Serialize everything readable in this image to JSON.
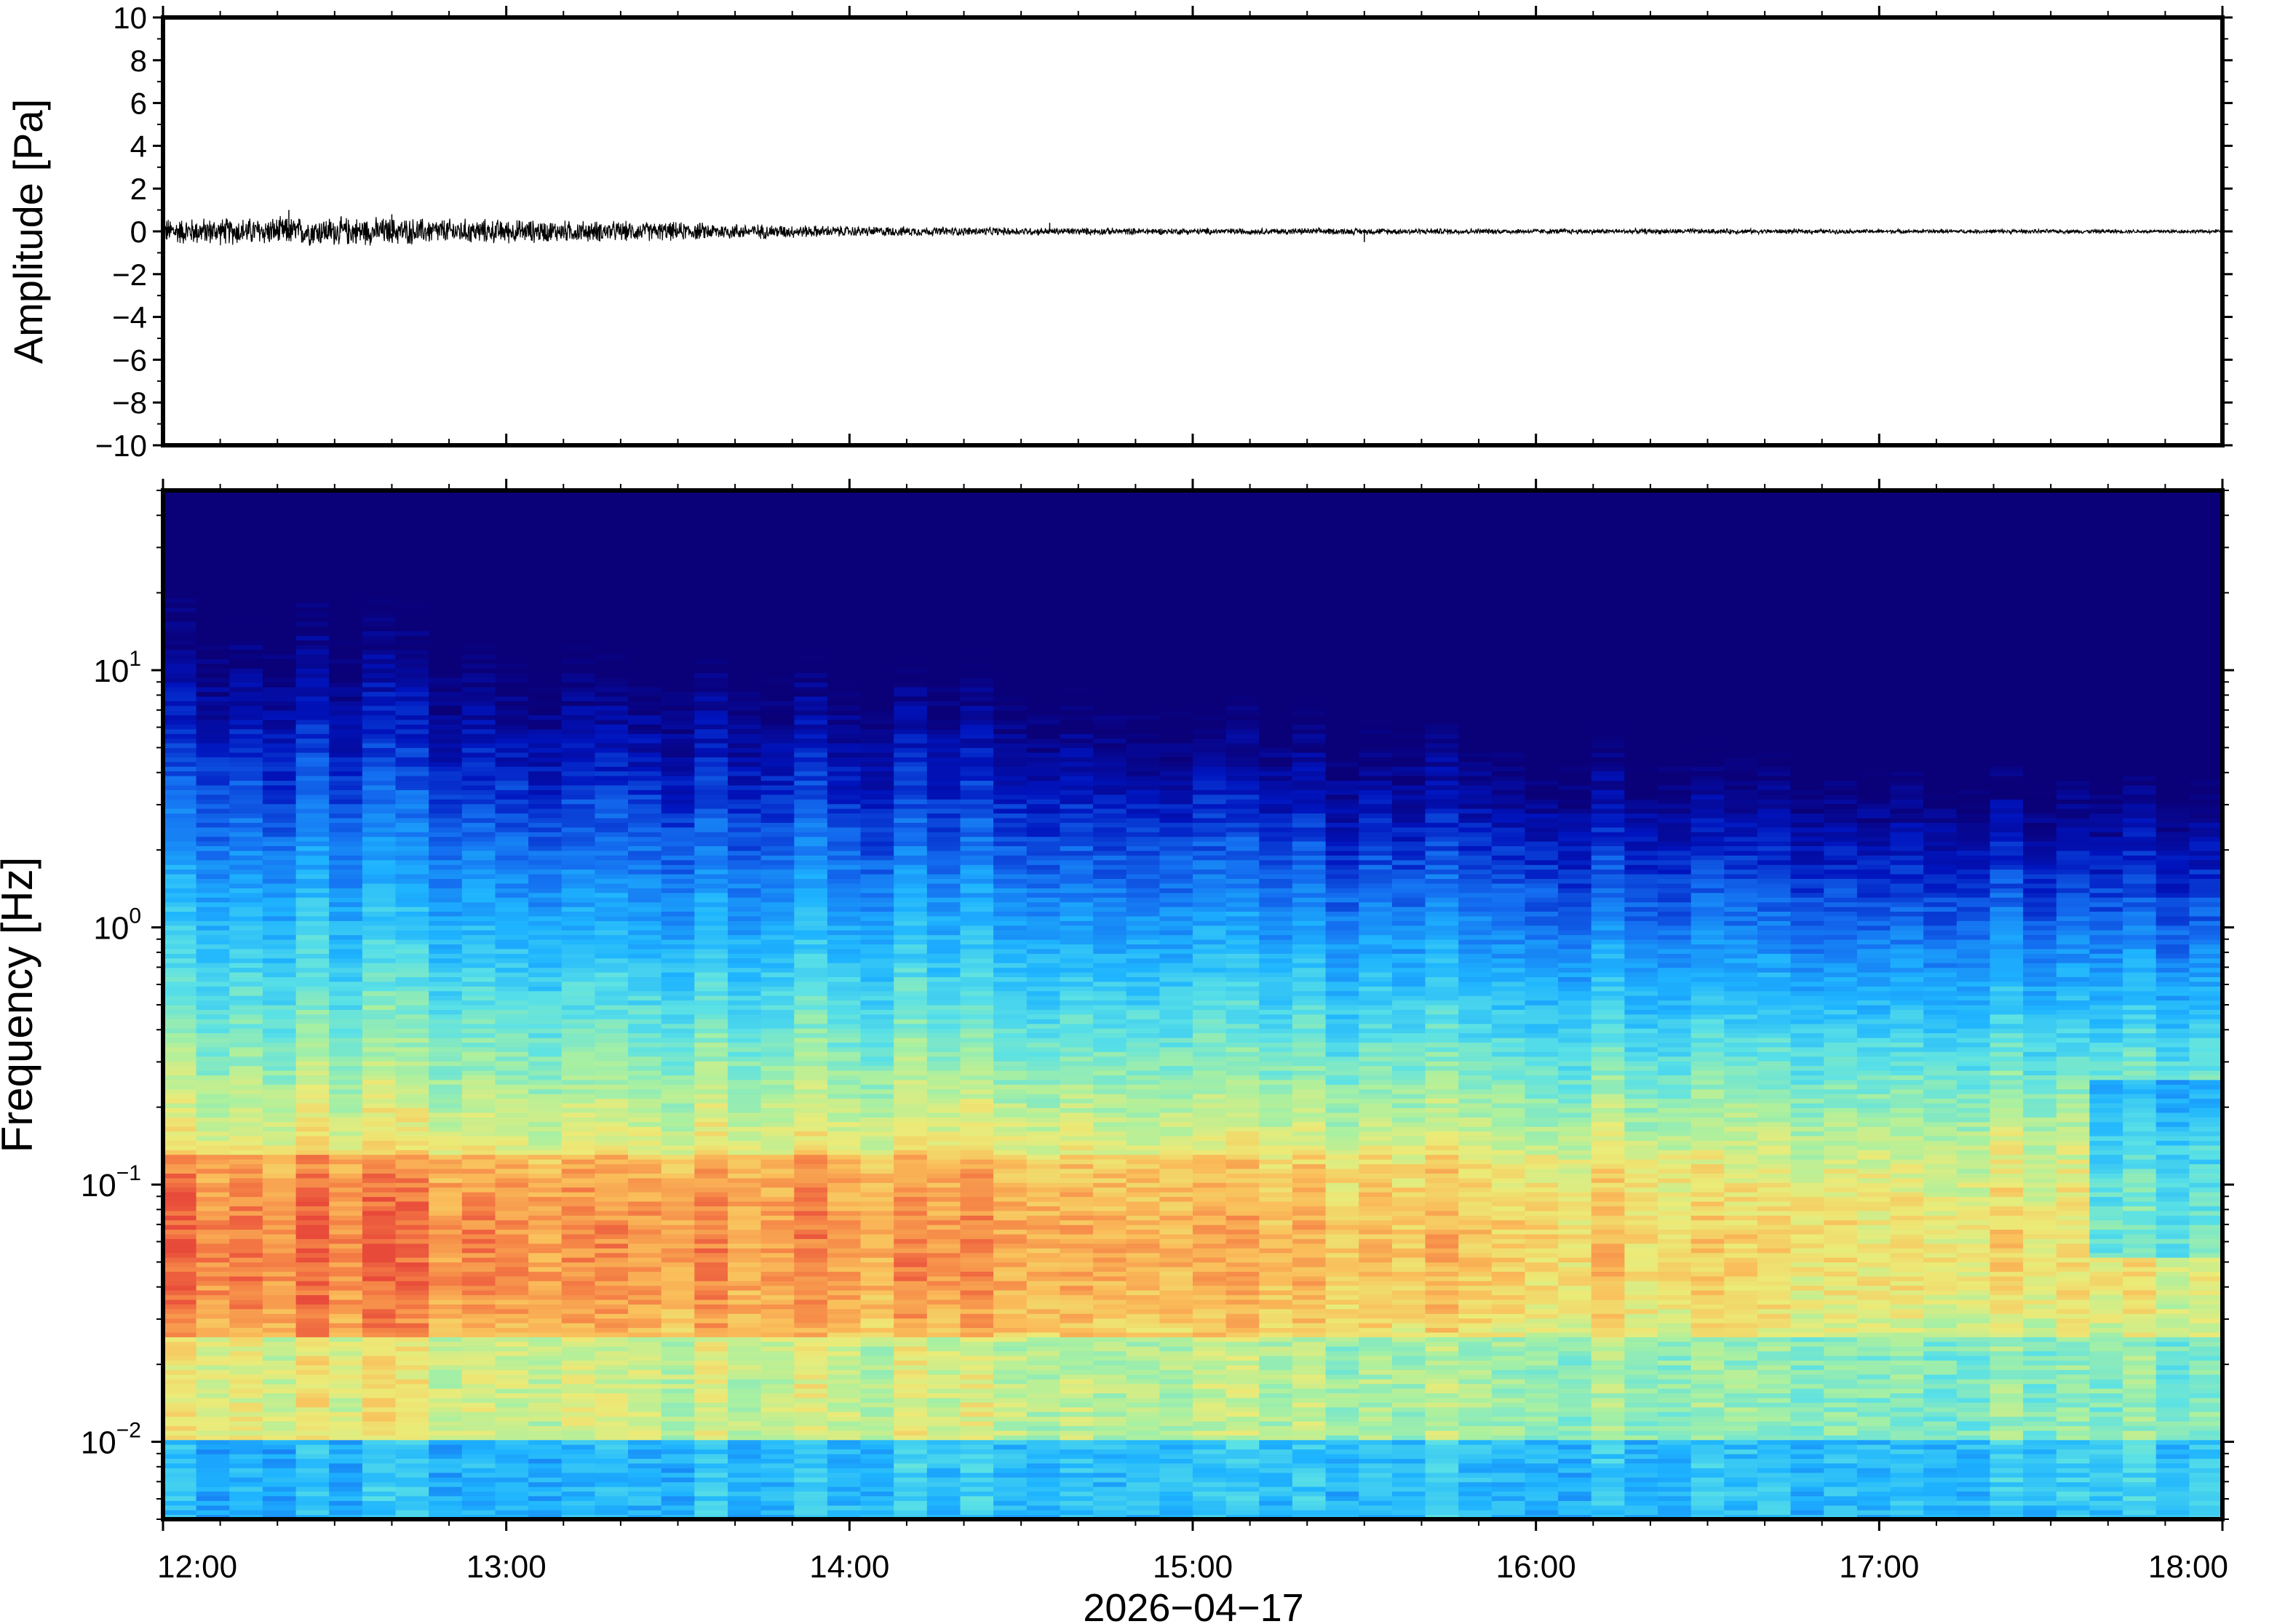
{
  "chart_data": [
    {
      "type": "line",
      "panel": "waveform",
      "ylabel": "Amplitude [Pa]",
      "ylim": [
        -10,
        10
      ],
      "yticks": [
        "10",
        "8",
        "6",
        "4",
        "2",
        "0",
        "−2",
        "−4",
        "−6",
        "−8",
        "−10"
      ],
      "ytick_values": [
        10,
        8,
        6,
        4,
        2,
        0,
        -2,
        -4,
        -6,
        -8,
        -10
      ],
      "xlim": [
        "12:00",
        "18:00"
      ],
      "line_color": "#000000",
      "envelope": {
        "x": [
          "12:00",
          "12:30",
          "13:00",
          "13:30",
          "14:00",
          "14:30",
          "15:00",
          "15:30",
          "16:00",
          "16:30",
          "17:00",
          "17:30",
          "18:00"
        ],
        "amplitude": [
          0.5,
          0.55,
          0.45,
          0.35,
          0.2,
          0.15,
          0.12,
          0.12,
          0.1,
          0.1,
          0.08,
          0.08,
          0.07
        ]
      },
      "spikes": [
        {
          "x": "12:22",
          "y": 1.0
        },
        {
          "x": "12:40",
          "y": 0.8
        },
        {
          "x": "14:35",
          "y": 0.4
        },
        {
          "x": "15:30",
          "y": -0.5
        }
      ]
    },
    {
      "type": "heatmap",
      "panel": "spectrogram",
      "ylabel": "Frequency [Hz]",
      "xlabel": "2026−04−17",
      "yscale": "log",
      "ylim": [
        0.005,
        50
      ],
      "yticks": [
        {
          "base": "10",
          "exp": "1",
          "value": 10
        },
        {
          "base": "10",
          "exp": "0",
          "value": 1
        },
        {
          "base": "10",
          "exp": "−1",
          "value": 0.1
        },
        {
          "base": "10",
          "exp": "−2",
          "value": 0.01
        }
      ],
      "xticks": [
        "12:00",
        "13:00",
        "14:00",
        "15:00",
        "16:00",
        "17:00",
        "18:00"
      ],
      "xlim": [
        "12:00",
        "18:00"
      ],
      "colormap": "jet",
      "colors": {
        "low": "#0a0078",
        "high": "#e84a3a"
      }
    }
  ]
}
